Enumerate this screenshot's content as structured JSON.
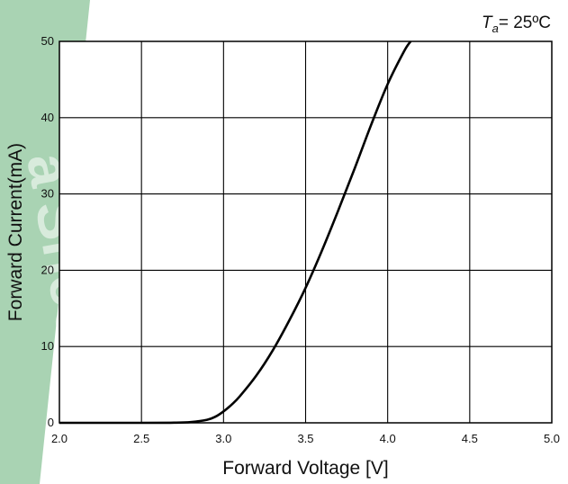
{
  "watermark": {
    "text": "a Shee",
    "band_color": "#a9d3b3"
  },
  "chart_data": {
    "type": "line",
    "xlabel": "Forward Voltage [V]",
    "ylabel": "Forward Current(mA)",
    "xlim": [
      2.0,
      5.0
    ],
    "ylim": [
      0,
      50
    ],
    "xticks": [
      2.0,
      2.5,
      3.0,
      3.5,
      4.0,
      4.5,
      5.0
    ],
    "xtick_labels": [
      "2.0",
      "2.5",
      "3.0",
      "3.5",
      "4.0",
      "4.5",
      "5.0"
    ],
    "yticks": [
      0,
      10,
      20,
      30,
      40,
      50
    ],
    "ytick_labels": [
      "0",
      "10",
      "20",
      "30",
      "40",
      "50"
    ],
    "grid": true,
    "line_color": "#000000",
    "annotation": {
      "symbol": "T",
      "subscript": "a",
      "text": "= 25ºC"
    },
    "series": [
      {
        "x": [
          2.0,
          2.5,
          2.7,
          2.8,
          2.9,
          2.95,
          3.0,
          3.05,
          3.1,
          3.2,
          3.3,
          3.4,
          3.5,
          3.6,
          3.7,
          3.8,
          3.9,
          4.0,
          4.1,
          4.14
        ],
        "y": [
          0,
          0,
          0.02,
          0.1,
          0.4,
          0.8,
          1.5,
          2.4,
          3.5,
          6.2,
          9.5,
          13.4,
          17.7,
          22.6,
          27.9,
          33.4,
          39.1,
          44.4,
          48.7,
          50
        ]
      }
    ]
  }
}
